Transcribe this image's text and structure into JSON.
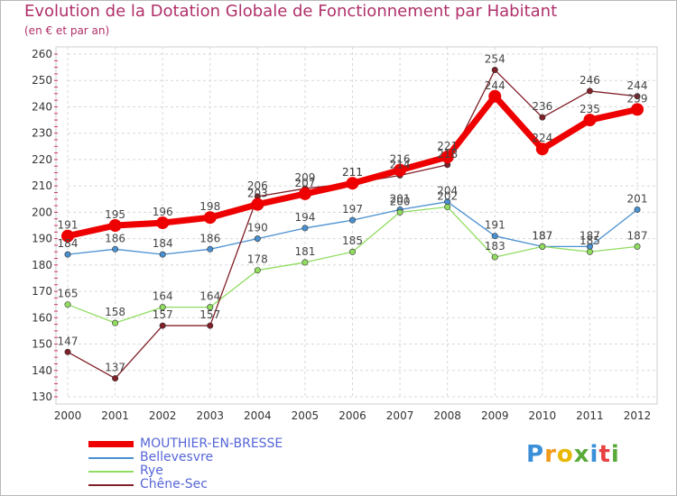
{
  "header": {
    "title": "Evolution de la Dotation Globale de Fonctionnement par Habitant",
    "subtitle": "(en € et par an)"
  },
  "logo": {
    "text": "Proxiti",
    "colors": [
      "#3a8fd8",
      "#f29a1a",
      "#e8b800",
      "#5aaa3a",
      "#3a8fd8",
      "#e84040",
      "#5aaa3a"
    ]
  },
  "chart_data": {
    "type": "line",
    "x": [
      "2000",
      "2001",
      "2002",
      "2003",
      "2004",
      "2005",
      "2006",
      "2007",
      "2008",
      "2009",
      "2010",
      "2011",
      "2012"
    ],
    "ylim": [
      130,
      260
    ],
    "yticks": [
      130,
      140,
      150,
      160,
      170,
      180,
      190,
      200,
      210,
      220,
      230,
      240,
      250,
      260
    ],
    "grid": true,
    "legend_position": "bottom-left",
    "series": [
      {
        "name": "MOUTHIER-EN-BRESSE",
        "color": "#ee0000",
        "thick": true,
        "values": [
          191,
          195,
          196,
          198,
          203,
          207,
          211,
          216,
          221,
          244,
          224,
          235,
          239
        ],
        "labels": [
          "191",
          "195",
          "196",
          "198",
          "203",
          "207",
          "211",
          "216",
          "221",
          "244",
          "224",
          "235",
          "239"
        ]
      },
      {
        "name": "Bellevesvre",
        "color": "#4a90d0",
        "thick": false,
        "values": [
          184,
          186,
          184,
          186,
          190,
          194,
          197,
          201,
          204,
          191,
          187,
          187,
          201
        ],
        "labels": [
          "184",
          "186",
          "184",
          "186",
          "190",
          "194",
          "197",
          "201",
          "204",
          "191",
          "187",
          "187",
          "201"
        ]
      },
      {
        "name": "Rye",
        "color": "#90dd60",
        "thick": false,
        "values": [
          165,
          158,
          164,
          164,
          178,
          181,
          185,
          200,
          202,
          183,
          187,
          185,
          187
        ],
        "labels": [
          "165",
          "158",
          "164",
          "164",
          "178",
          "181",
          "185",
          "200",
          "202",
          "183",
          "187",
          "185",
          "187"
        ]
      },
      {
        "name": "Chêne-Sec",
        "color": "#802028",
        "thick": false,
        "values": [
          147,
          137,
          157,
          157,
          206,
          209,
          211,
          214,
          218,
          254,
          236,
          246,
          244
        ],
        "labels": [
          "147",
          "137",
          "157",
          "157",
          "206",
          "209",
          "211",
          "214",
          "218",
          "254",
          "236",
          "246",
          "244"
        ]
      }
    ]
  }
}
